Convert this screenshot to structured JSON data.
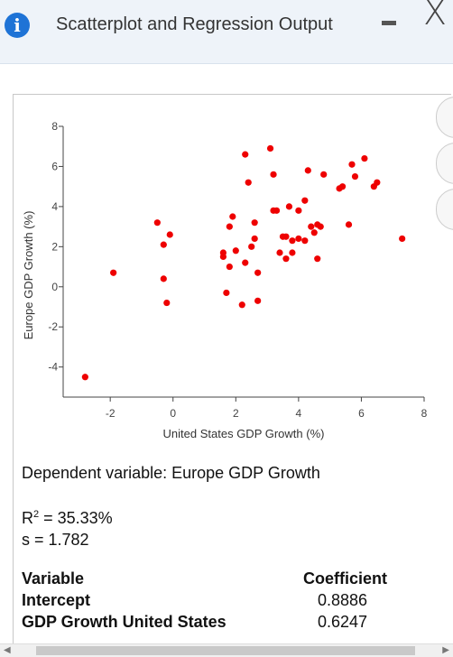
{
  "window": {
    "title": "Scatterplot and Regression Output",
    "info_icon": "info-icon",
    "minimize_icon": "minus-icon",
    "close_symbol": "X"
  },
  "chart_data": {
    "type": "scatter",
    "xlabel": "United States GDP Growth (%)",
    "ylabel": "Europe GDP Growth (%)",
    "xlim": [
      -3.5,
      8
    ],
    "ylim": [
      -5.5,
      8
    ],
    "xticks": [
      -2,
      0,
      2,
      4,
      6,
      8
    ],
    "yticks": [
      8,
      6,
      4,
      2,
      0,
      -2,
      -4
    ],
    "xtick_labels": [
      "-2",
      "0",
      "2",
      "4",
      "6",
      "8"
    ],
    "ytick_labels": [
      "8",
      "6",
      "4",
      "2",
      "0",
      "-2",
      "-4"
    ],
    "grid": false,
    "point_color": "#ee0000",
    "points": [
      [
        -2.8,
        -4.5
      ],
      [
        -1.9,
        0.7
      ],
      [
        -0.5,
        3.2
      ],
      [
        -0.3,
        2.1
      ],
      [
        -0.3,
        0.4
      ],
      [
        -0.2,
        -0.8
      ],
      [
        -0.1,
        2.6
      ],
      [
        1.6,
        1.7
      ],
      [
        1.6,
        1.5
      ],
      [
        1.7,
        -0.3
      ],
      [
        1.8,
        3.0
      ],
      [
        1.8,
        1.0
      ],
      [
        1.9,
        3.5
      ],
      [
        2.0,
        1.8
      ],
      [
        2.2,
        -0.9
      ],
      [
        2.3,
        6.6
      ],
      [
        2.3,
        1.2
      ],
      [
        2.4,
        5.2
      ],
      [
        2.5,
        2.0
      ],
      [
        2.6,
        3.2
      ],
      [
        2.6,
        2.4
      ],
      [
        2.7,
        -0.7
      ],
      [
        2.7,
        0.7
      ],
      [
        3.1,
        6.9
      ],
      [
        3.2,
        3.8
      ],
      [
        3.2,
        5.6
      ],
      [
        3.3,
        3.8
      ],
      [
        3.4,
        1.7
      ],
      [
        3.5,
        2.5
      ],
      [
        3.6,
        2.5
      ],
      [
        3.6,
        1.4
      ],
      [
        3.7,
        4.0
      ],
      [
        3.8,
        2.3
      ],
      [
        3.8,
        1.7
      ],
      [
        4.0,
        3.8
      ],
      [
        4.0,
        2.4
      ],
      [
        4.2,
        2.3
      ],
      [
        4.2,
        4.3
      ],
      [
        4.3,
        5.8
      ],
      [
        4.4,
        3.0
      ],
      [
        4.5,
        2.7
      ],
      [
        4.6,
        1.4
      ],
      [
        4.6,
        3.1
      ],
      [
        4.7,
        3.0
      ],
      [
        4.8,
        5.6
      ],
      [
        5.3,
        4.9
      ],
      [
        5.4,
        5.0
      ],
      [
        5.6,
        3.1
      ],
      [
        5.7,
        6.1
      ],
      [
        5.8,
        5.5
      ],
      [
        6.1,
        6.4
      ],
      [
        6.4,
        5.0
      ],
      [
        6.5,
        5.2
      ],
      [
        7.3,
        2.4
      ]
    ]
  },
  "output": {
    "dependent_variable": "Dependent variable: Europe GDP Growth",
    "r2_prefix": "R",
    "r2_sup": "2",
    "r2_value": " = 35.33%",
    "s_line": "s = 1.782"
  },
  "table": {
    "col_variable": "Variable",
    "col_coefficient": "Coefficient",
    "rows": [
      {
        "variable": "Intercept",
        "coefficient": "0.8886"
      },
      {
        "variable": "GDP Growth United States",
        "coefficient": "0.6247"
      }
    ]
  }
}
